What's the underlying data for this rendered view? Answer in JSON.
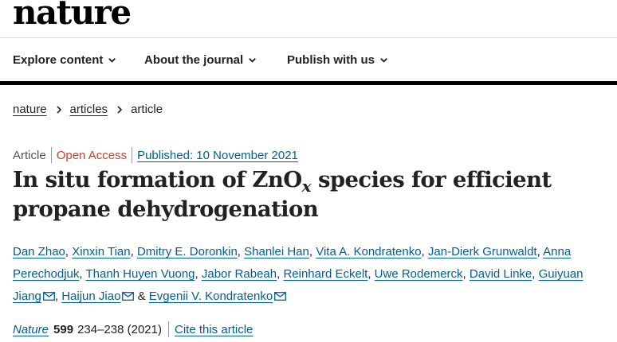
{
  "site": {
    "logo": "nature"
  },
  "nav": {
    "items": [
      {
        "label": "Explore content"
      },
      {
        "label": "About the journal"
      },
      {
        "label": "Publish with us"
      }
    ]
  },
  "breadcrumb": {
    "items": [
      "nature",
      "articles"
    ],
    "current": "article"
  },
  "article": {
    "type": "Article",
    "access": "Open Access",
    "published": "Published: 10 November 2021",
    "title_before": "In situ formation of ZnO",
    "title_sub": "x",
    "title_after": " species for efficient propane dehydrogenation",
    "authors": [
      {
        "name": "Dan Zhao"
      },
      {
        "name": "Xinxin Tian"
      },
      {
        "name": "Dmitry E. Doronkin"
      },
      {
        "name": "Shanlei Han"
      },
      {
        "name": "Vita A. Kondratenko"
      },
      {
        "name": "Jan-Dierk Grunwaldt"
      },
      {
        "name": "Anna Perechodjuk"
      },
      {
        "name": "Thanh Huyen Vuong"
      },
      {
        "name": "Jabor Rabeah"
      },
      {
        "name": "Reinhard Eckelt"
      },
      {
        "name": "Uwe Rodemerck"
      },
      {
        "name": "David Linke"
      },
      {
        "name": "Guiyuan Jiang"
      },
      {
        "name": "Haijun Jiao"
      },
      {
        "name": "Evgenii V. Kondratenko"
      }
    ],
    "ampersand": "&",
    "citation": {
      "journal": "Nature",
      "volume": "599",
      "pages": "234–238 (2021)",
      "cite_link": "Cite this article"
    }
  },
  "colors": {
    "link": "#025e8d",
    "open_access": "#c5432d",
    "text": "#222222"
  },
  "icons": {
    "nav_chevron": "chevron-down-icon",
    "breadcrumb_separator": "chevron-right-icon",
    "author_contact": "mail-icon"
  }
}
